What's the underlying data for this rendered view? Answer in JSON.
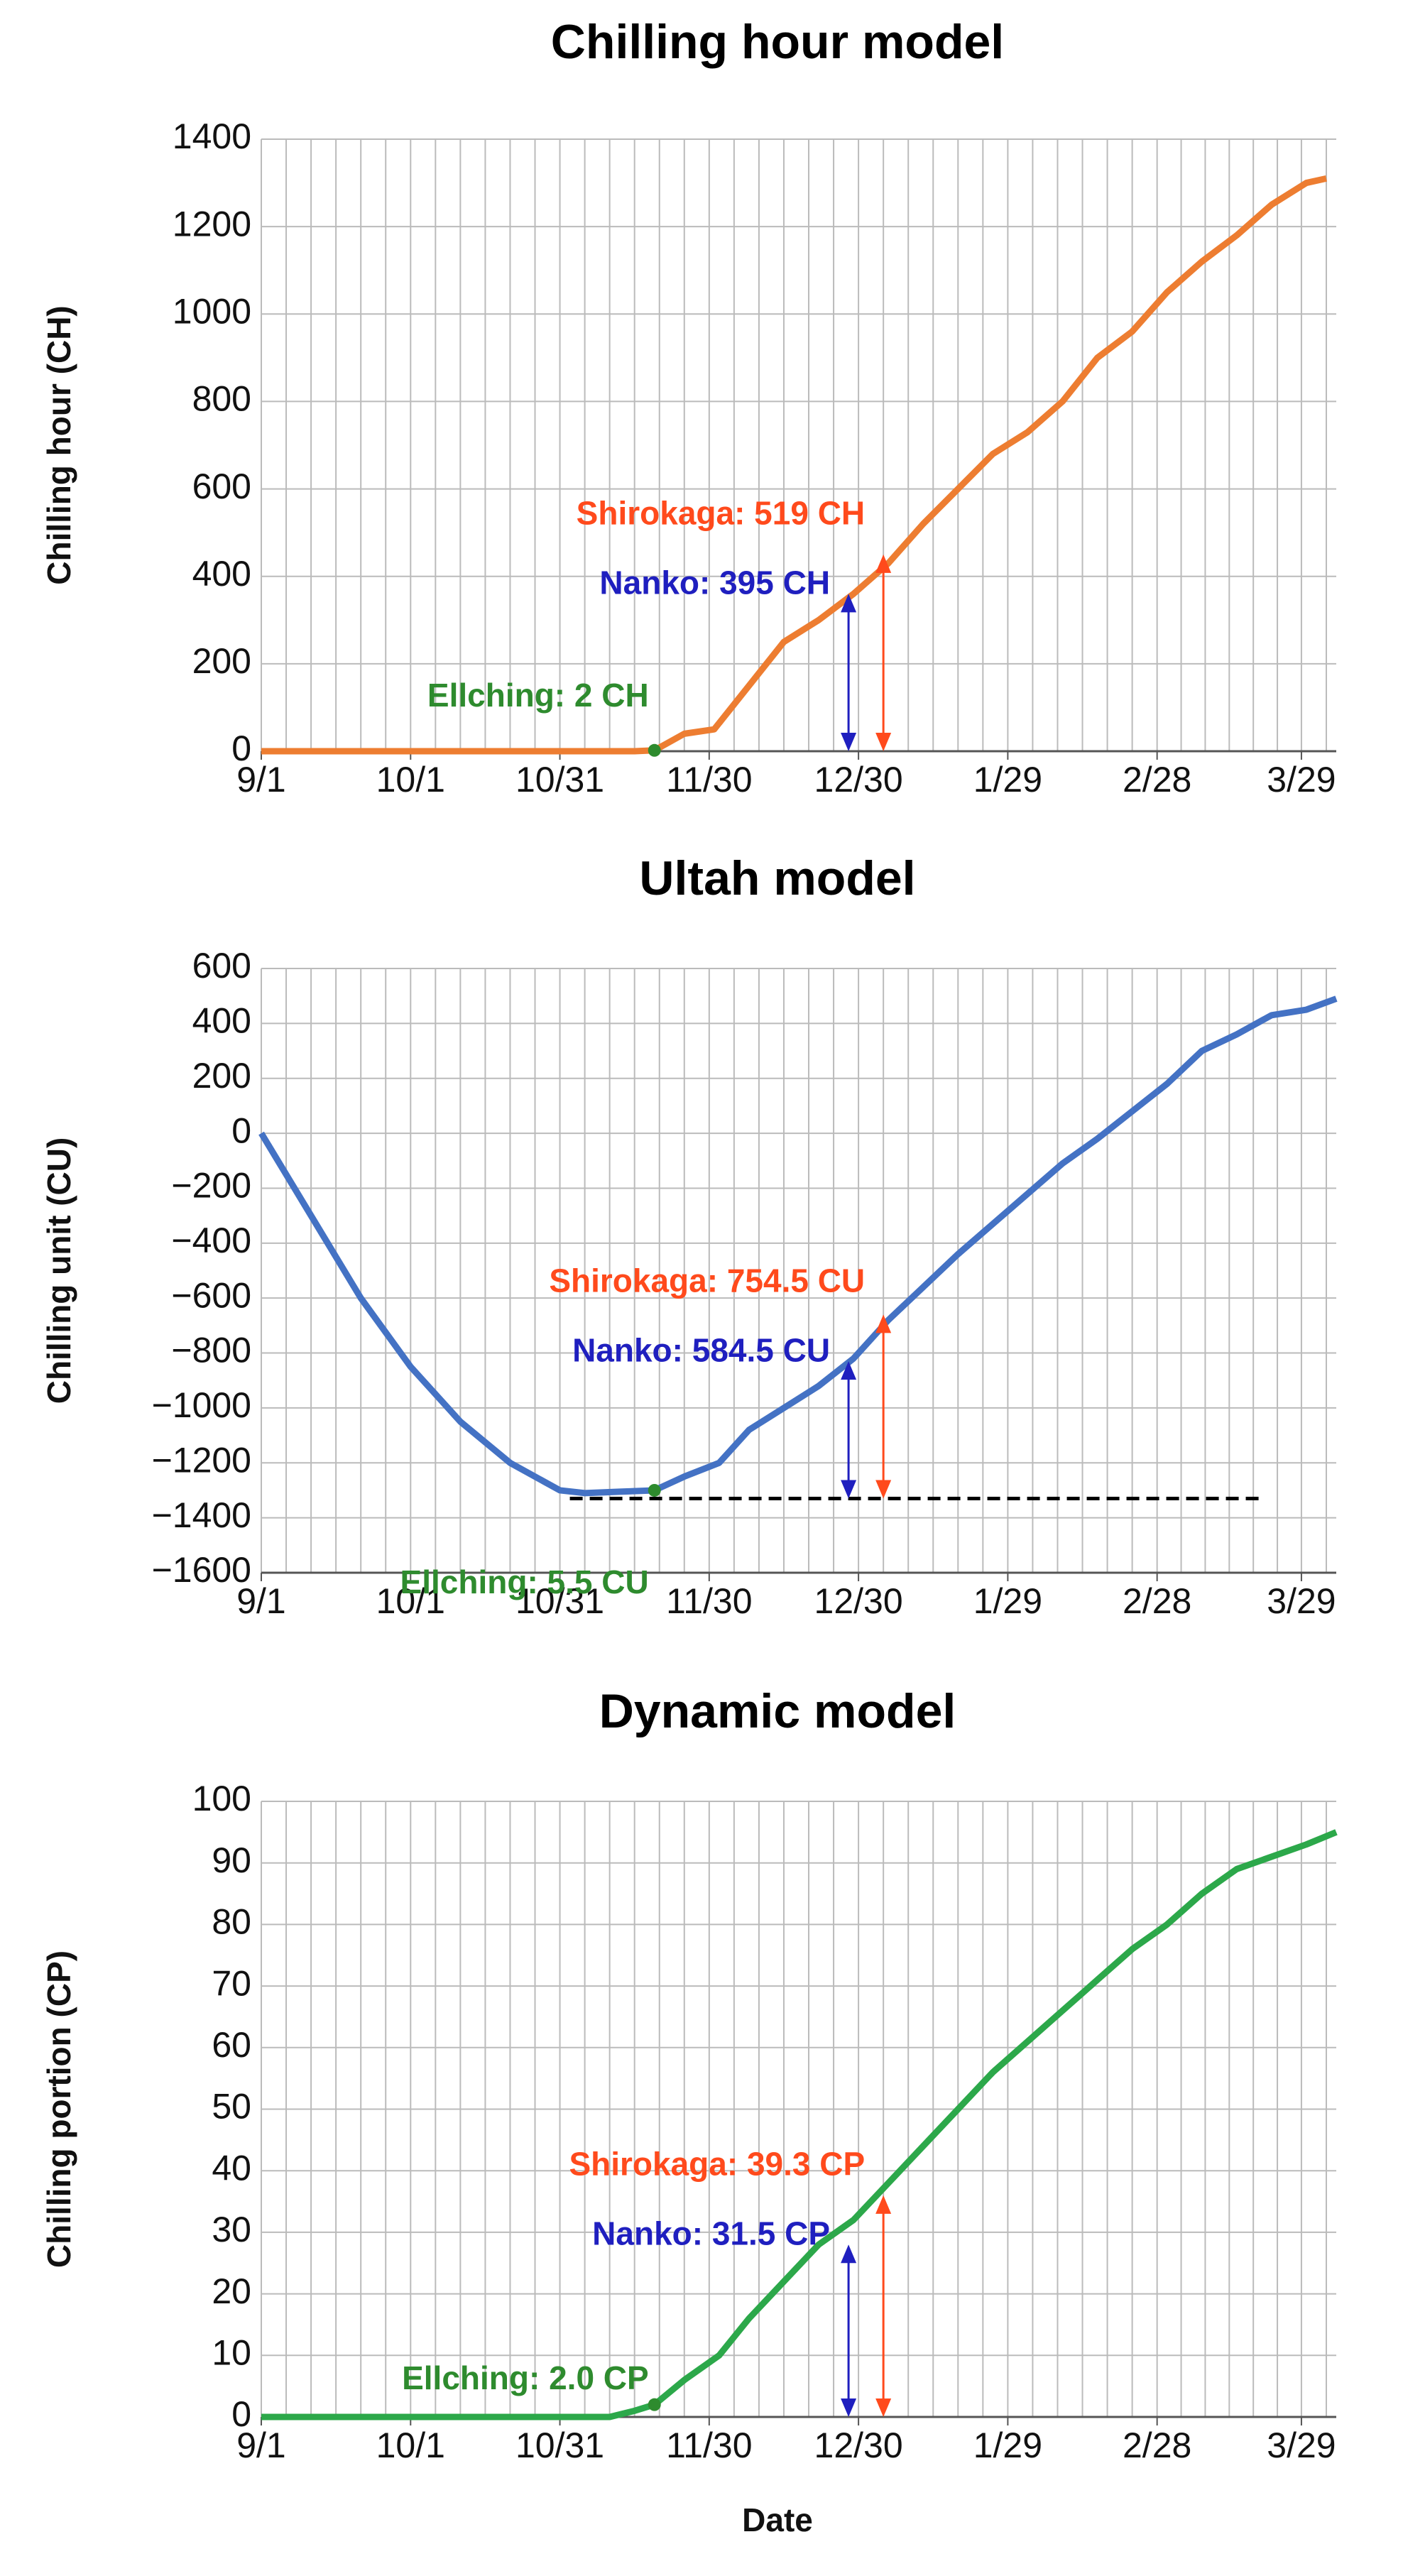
{
  "chart_data": [
    {
      "type": "line",
      "title": "Chilling hour model",
      "y_label": "Chilling hour (CH)",
      "xlim": [
        0,
        216
      ],
      "xticks": [
        {
          "value": 0,
          "label": "9/1"
        },
        {
          "value": 30,
          "label": "10/1"
        },
        {
          "value": 60,
          "label": "10/31"
        },
        {
          "value": 90,
          "label": "11/30"
        },
        {
          "value": 120,
          "label": "12/30"
        },
        {
          "value": 150,
          "label": "1/29"
        },
        {
          "value": 180,
          "label": "2/28"
        },
        {
          "value": 209,
          "label": "3/29"
        }
      ],
      "ylim": [
        0,
        1400
      ],
      "yticks": [
        0,
        200,
        400,
        600,
        800,
        1000,
        1200,
        1400
      ],
      "grid": true,
      "x": [
        0,
        10,
        20,
        30,
        40,
        50,
        60,
        70,
        75,
        79,
        85,
        91,
        98,
        105,
        112,
        119,
        126,
        133,
        140,
        147,
        154,
        161,
        168,
        175,
        182,
        189,
        196,
        203,
        210,
        214
      ],
      "series": [
        {
          "color": "#ed7d31",
          "values": [
            0,
            0,
            0,
            0,
            0,
            0,
            0,
            0,
            0,
            2,
            40,
            50,
            150,
            250,
            300,
            360,
            430,
            520,
            600,
            680,
            730,
            800,
            900,
            960,
            1050,
            1120,
            1180,
            1250,
            1300,
            1310
          ]
        }
      ],
      "arrows": [
        {
          "text": "Nanko: 395 CH",
          "color": "#1f1fbf",
          "x": 118,
          "from": 0,
          "to": 360
        },
        {
          "text": "Shirokaga: 519 CH",
          "color": "#ff4a1c",
          "x": 125,
          "from": 0,
          "to": 450
        }
      ],
      "marker": {
        "text": "Ellching: 2 CH",
        "color": "#2e8b2e",
        "x": 79,
        "y": 2
      }
    },
    {
      "type": "line",
      "title": "Ultah model",
      "y_label": "Chilling unit (CU)",
      "xlim": [
        0,
        216
      ],
      "xticks": [
        {
          "value": 0,
          "label": "9/1"
        },
        {
          "value": 30,
          "label": "10/1"
        },
        {
          "value": 60,
          "label": "10/31"
        },
        {
          "value": 90,
          "label": "11/30"
        },
        {
          "value": 120,
          "label": "12/30"
        },
        {
          "value": 150,
          "label": "1/29"
        },
        {
          "value": 180,
          "label": "2/28"
        },
        {
          "value": 209,
          "label": "3/29"
        }
      ],
      "ylim": [
        -1600,
        600
      ],
      "yticks": [
        {
          "value": -1600,
          "label": "−1600"
        },
        {
          "value": -1400,
          "label": "−1400"
        },
        {
          "value": -1200,
          "label": "−1200"
        },
        {
          "value": -1000,
          "label": "−1000"
        },
        {
          "value": -800,
          "label": "−800"
        },
        {
          "value": -600,
          "label": "−600"
        },
        {
          "value": -400,
          "label": "−400"
        },
        {
          "value": -200,
          "label": "−200"
        },
        0,
        200,
        400,
        600
      ],
      "grid": true,
      "x": [
        0,
        10,
        20,
        30,
        40,
        50,
        60,
        65,
        72,
        79,
        85,
        92,
        98,
        105,
        112,
        119,
        126,
        133,
        140,
        147,
        154,
        161,
        168,
        175,
        182,
        189,
        196,
        203,
        210,
        216
      ],
      "series": [
        {
          "color": "#4472c4",
          "values": [
            0,
            -300,
            -600,
            -850,
            -1050,
            -1200,
            -1300,
            -1310,
            -1305,
            -1300,
            -1250,
            -1200,
            -1080,
            -1000,
            -920,
            -820,
            -680,
            -560,
            -440,
            -330,
            -220,
            -110,
            -20,
            80,
            180,
            300,
            360,
            430,
            450,
            490
          ]
        }
      ],
      "hline": {
        "y": -1330,
        "x": [
          62,
          201
        ]
      },
      "arrows": [
        {
          "text": "Nanko: 584.5 CU",
          "color": "#1f1fbf",
          "x": 118,
          "from": -1330,
          "to": -830
        },
        {
          "text": "Shirokaga: 754.5 CU",
          "color": "#ff4a1c",
          "x": 125,
          "from": -1330,
          "to": -660
        }
      ],
      "marker": {
        "text": "Ellching: 5.5 CU",
        "color": "#2e8b2e",
        "x": 79,
        "y": -1300
      }
    },
    {
      "type": "line",
      "title": "Dynamic model",
      "y_label": "Chilling portion (CP)",
      "x_label": "Date",
      "xlim": [
        0,
        216
      ],
      "xticks": [
        {
          "value": 0,
          "label": "9/1"
        },
        {
          "value": 30,
          "label": "10/1"
        },
        {
          "value": 60,
          "label": "10/31"
        },
        {
          "value": 90,
          "label": "11/30"
        },
        {
          "value": 120,
          "label": "12/30"
        },
        {
          "value": 150,
          "label": "1/29"
        },
        {
          "value": 180,
          "label": "2/28"
        },
        {
          "value": 209,
          "label": "3/29"
        }
      ],
      "ylim": [
        0,
        100
      ],
      "yticks": [
        0,
        10,
        20,
        30,
        40,
        50,
        60,
        70,
        80,
        90,
        100
      ],
      "grid": true,
      "x": [
        0,
        10,
        20,
        30,
        40,
        50,
        60,
        70,
        75,
        79,
        85,
        92,
        98,
        105,
        112,
        119,
        126,
        133,
        140,
        147,
        154,
        161,
        168,
        175,
        182,
        189,
        196,
        203,
        210,
        216
      ],
      "series": [
        {
          "color": "#2ca84a",
          "values": [
            0,
            0,
            0,
            0,
            0,
            0,
            0,
            0,
            1,
            2,
            6,
            10,
            16,
            22,
            28,
            32,
            38,
            44,
            50,
            56,
            61,
            66,
            71,
            76,
            80,
            85,
            89,
            91,
            93,
            95
          ]
        }
      ],
      "arrows": [
        {
          "text": "Nanko: 31.5 CP",
          "color": "#1f1fbf",
          "x": 118,
          "from": 0,
          "to": 28
        },
        {
          "text": "Shirokaga: 39.3 CP",
          "color": "#ff4a1c",
          "x": 125,
          "from": 0,
          "to": 36
        }
      ],
      "marker": {
        "text": "Ellching: 2.0 CP",
        "color": "#2e8b2e",
        "x": 79,
        "y": 2
      }
    }
  ]
}
